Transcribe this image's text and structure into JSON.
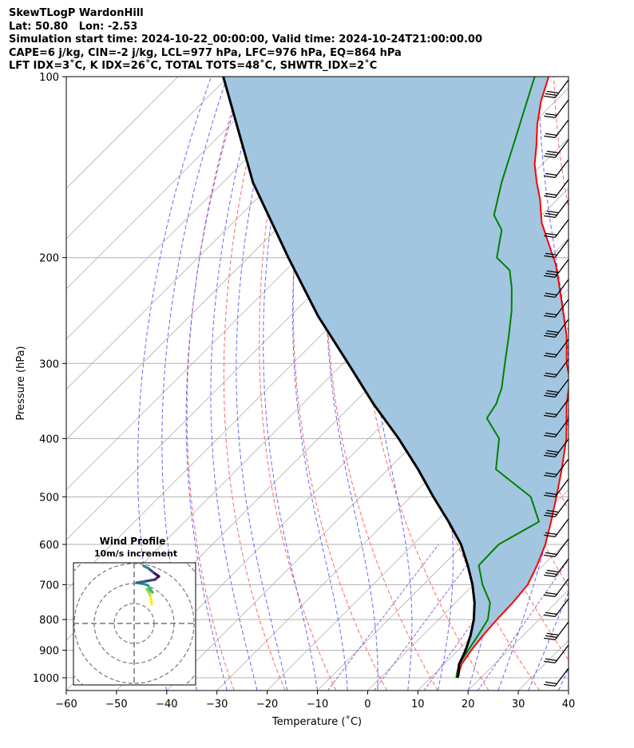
{
  "header": {
    "line1": "SkewTLogP WardonHill",
    "line2": "Lat: 50.80   Lon: -2.53",
    "line3": "Simulation start time: 2024-10-22_00:00:00, Valid time: 2024-10-24T21:00:00.00",
    "line4": "CAPE=6 j/kg, CIN=-2 j/kg, LCL=977 hPa, LFC=976 hPa, EQ=864 hPa",
    "line5": "LFT IDX=3˚C, K IDX=26˚C, TOTAL TOTS=48˚C, SHWTR_IDX=2˚C"
  },
  "chart_data": {
    "type": "line",
    "xlabel": "Temperature (˚C)",
    "ylabel": "Pressure (hPa)",
    "xlim": [
      -60,
      40
    ],
    "ylim": [
      1050,
      100
    ],
    "yscale": "log",
    "skew": "45 degrees",
    "grid": true,
    "x_ticks": [
      -60,
      -50,
      -40,
      -30,
      -20,
      -10,
      0,
      10,
      20,
      30,
      40
    ],
    "y_ticks": [
      1000,
      900,
      800,
      700,
      600,
      500,
      400,
      300,
      200,
      100
    ],
    "colors": {
      "temperature": "#ff0000",
      "dewpoint": "#008000",
      "parcel": "#000000",
      "cape_fill": "#a2c6df",
      "dry_adiabat": "#ff6666",
      "moist_adiabat": "#6666ff",
      "mixing_ratio": "#9966cc",
      "isotherm": "#b0b0b0"
    },
    "series": [
      {
        "name": "temperature",
        "points": [
          [
            15.3,
            1000
          ],
          [
            14.6,
            980
          ],
          [
            13.5,
            950
          ],
          [
            12.6,
            900
          ],
          [
            12.0,
            850
          ],
          [
            11.6,
            800
          ],
          [
            11.4,
            750
          ],
          [
            10.8,
            700
          ],
          [
            8.8,
            650
          ],
          [
            6.3,
            600
          ],
          [
            2.9,
            550
          ],
          [
            -1.0,
            500
          ],
          [
            -5.4,
            450
          ],
          [
            -10.6,
            400
          ],
          [
            -17.5,
            350
          ],
          [
            -21.5,
            320
          ],
          [
            -25.5,
            300
          ],
          [
            -31.0,
            270
          ],
          [
            -38.0,
            240
          ],
          [
            -43.2,
            220
          ],
          [
            -47.5,
            205
          ],
          [
            -51.0,
            195
          ],
          [
            -58.5,
            175
          ],
          [
            -63.5,
            160
          ],
          [
            -67.5,
            150
          ],
          [
            -71.5,
            140
          ],
          [
            -75.0,
            130
          ],
          [
            -79.0,
            120
          ],
          [
            -82.8,
            110
          ],
          [
            -86.2,
            100
          ]
        ]
      },
      {
        "name": "dewpoint",
        "points": [
          [
            15.1,
            1000
          ],
          [
            14.2,
            980
          ],
          [
            13.0,
            950
          ],
          [
            12.0,
            900
          ],
          [
            11.0,
            850
          ],
          [
            9.8,
            800
          ],
          [
            6.9,
            750
          ],
          [
            1.8,
            700
          ],
          [
            -2.8,
            650
          ],
          [
            -3.0,
            600
          ],
          [
            0.5,
            550
          ],
          [
            -6.1,
            500
          ],
          [
            -18.5,
            450
          ],
          [
            -24.0,
            400
          ],
          [
            -30.5,
            370
          ],
          [
            -31.5,
            350
          ],
          [
            -32.5,
            340
          ],
          [
            -33.5,
            330
          ],
          [
            -37.8,
            300
          ],
          [
            -42.5,
            270
          ],
          [
            -47.0,
            245
          ],
          [
            -51.4,
            225
          ],
          [
            -55.4,
            210
          ],
          [
            -60.5,
            200
          ],
          [
            -65.0,
            180
          ],
          [
            -69.5,
            170
          ],
          [
            -74.5,
            150
          ],
          [
            -81.0,
            125
          ],
          [
            -89.0,
            100
          ]
        ]
      },
      {
        "name": "parcel",
        "points": [
          [
            15.3,
            1000
          ],
          [
            15.0,
            990
          ],
          [
            14.4,
            977
          ],
          [
            13.0,
            950
          ],
          [
            11.5,
            900
          ],
          [
            9.5,
            850
          ],
          [
            7.0,
            800
          ],
          [
            3.8,
            750
          ],
          [
            -0.2,
            700
          ],
          [
            -5.0,
            650
          ],
          [
            -10.5,
            600
          ],
          [
            -17.5,
            550
          ],
          [
            -25.5,
            500
          ],
          [
            -34.0,
            450
          ],
          [
            -44.0,
            400
          ],
          [
            -56.0,
            350
          ],
          [
            -69.0,
            300
          ],
          [
            -84.5,
            250
          ],
          [
            -102.0,
            200
          ],
          [
            -124.0,
            150
          ],
          [
            -151.0,
            100
          ]
        ]
      }
    ],
    "wind_barbs": "right edge, 10m/s increments",
    "inset": {
      "title": "Wind Profile",
      "subtitle": "10m/s increment",
      "rings": 4
    }
  }
}
